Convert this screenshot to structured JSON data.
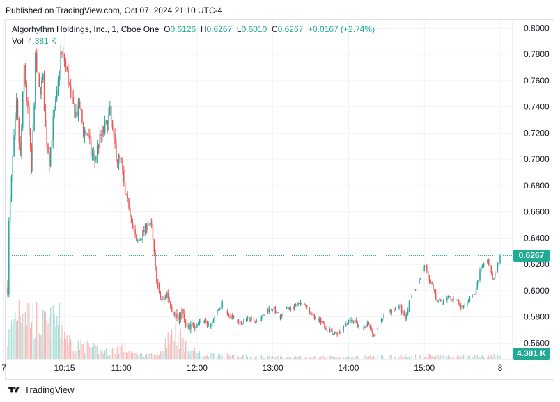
{
  "header": {
    "published": "Published on TradingView.com, Oct 07, 2024 21:10 UTC-4"
  },
  "legend": {
    "symbol": "Algorhythm Holdings, Inc., 1, Cboe One",
    "o_label": "O",
    "o_value": "0.6126",
    "h_label": "H",
    "h_value": "0.6267",
    "l_label": "L",
    "l_value": "0.6010",
    "c_label": "C",
    "c_value": "0.6267",
    "change": "+0.0167 (+2.74%)",
    "vol_label": "Vol",
    "vol_value": "4.381 K"
  },
  "badges": {
    "last_price": "0.6267",
    "last_volume": "4.381 K"
  },
  "footer": {
    "brand": "TradingView"
  },
  "colors": {
    "up": "#26a69a",
    "down": "#ef5350",
    "up_vol": "#a8dcd6",
    "down_vol": "#f7b8b6",
    "grid": "#f0f3fa",
    "last_line": "#22ab94"
  },
  "chart_data": {
    "type": "candlestick",
    "title": "Algorhythm Holdings, Inc., 1, Cboe One",
    "y_axis": {
      "ticks": [
        "0.8000",
        "0.7800",
        "0.7600",
        "0.7400",
        "0.7200",
        "0.7000",
        "0.6800",
        "0.6600",
        "0.6400",
        "0.6200",
        "0.6000",
        "0.5800",
        "0.5600"
      ],
      "range": [
        0.548,
        0.806
      ],
      "position": "right"
    },
    "x_axis": {
      "ticks": [
        "7",
        "10:15",
        "11:00",
        "12:00",
        "13:00",
        "14:00",
        "15:00",
        "8"
      ],
      "range": [
        "09:30",
        "16:00"
      ]
    },
    "last_price": 0.6267,
    "price_path": [
      [
        "09:30",
        0.603
      ],
      [
        "09:31",
        0.65
      ],
      [
        "09:34",
        0.7
      ],
      [
        "09:37",
        0.74
      ],
      [
        "09:40",
        0.7
      ],
      [
        "09:43",
        0.77
      ],
      [
        "09:46",
        0.735
      ],
      [
        "09:49",
        0.69
      ],
      [
        "09:52",
        0.775
      ],
      [
        "09:55",
        0.752
      ],
      [
        "09:58",
        0.76
      ],
      [
        "10:00",
        0.723
      ],
      [
        "10:03",
        0.7
      ],
      [
        "10:06",
        0.728
      ],
      [
        "10:09",
        0.748
      ],
      [
        "10:12",
        0.78
      ],
      [
        "10:15",
        0.775
      ],
      [
        "10:18",
        0.76
      ],
      [
        "10:21",
        0.742
      ],
      [
        "10:24",
        0.735
      ],
      [
        "10:27",
        0.74
      ],
      [
        "10:30",
        0.722
      ],
      [
        "10:33",
        0.72
      ],
      [
        "10:36",
        0.705
      ],
      [
        "10:39",
        0.7
      ],
      [
        "10:42",
        0.712
      ],
      [
        "10:45",
        0.72
      ],
      [
        "10:48",
        0.725
      ],
      [
        "10:51",
        0.735
      ],
      [
        "10:54",
        0.714
      ],
      [
        "10:57",
        0.7
      ],
      [
        "11:00",
        0.698
      ],
      [
        "11:03",
        0.672
      ],
      [
        "11:06",
        0.665
      ],
      [
        "11:09",
        0.65
      ],
      [
        "11:12",
        0.636
      ],
      [
        "11:15",
        0.64
      ],
      [
        "11:18",
        0.645
      ],
      [
        "11:21",
        0.652
      ],
      [
        "11:24",
        0.648
      ],
      [
        "11:27",
        0.616
      ],
      [
        "11:30",
        0.596
      ],
      [
        "11:33",
        0.592
      ],
      [
        "11:36",
        0.598
      ],
      [
        "11:39",
        0.59
      ],
      [
        "11:42",
        0.584
      ],
      [
        "11:45",
        0.577
      ],
      [
        "11:48",
        0.584
      ],
      [
        "11:51",
        0.572
      ],
      [
        "11:54",
        0.57
      ],
      [
        "11:57",
        0.575
      ],
      [
        "12:00",
        0.575
      ],
      [
        "12:05",
        0.577
      ],
      [
        "12:10",
        0.574
      ],
      [
        "12:15",
        0.582
      ],
      [
        "12:20",
        0.59
      ],
      [
        "12:25",
        0.582
      ],
      [
        "12:30",
        0.577
      ],
      [
        "12:35",
        0.575
      ],
      [
        "12:40",
        0.58
      ],
      [
        "12:45",
        0.578
      ],
      [
        "12:50",
        0.577
      ],
      [
        "12:55",
        0.585
      ],
      [
        "13:00",
        0.588
      ],
      [
        "13:05",
        0.58
      ],
      [
        "13:10",
        0.585
      ],
      [
        "13:15",
        0.586
      ],
      [
        "13:20",
        0.592
      ],
      [
        "13:25",
        0.588
      ],
      [
        "13:30",
        0.584
      ],
      [
        "13:35",
        0.578
      ],
      [
        "13:40",
        0.574
      ],
      [
        "13:45",
        0.569
      ],
      [
        "13:50",
        0.566
      ],
      [
        "13:55",
        0.57
      ],
      [
        "14:00",
        0.578
      ],
      [
        "14:05",
        0.576
      ],
      [
        "14:10",
        0.57
      ],
      [
        "14:15",
        0.575
      ],
      [
        "14:20",
        0.564
      ],
      [
        "14:25",
        0.578
      ],
      [
        "14:30",
        0.582
      ],
      [
        "14:35",
        0.585
      ],
      [
        "14:40",
        0.588
      ],
      [
        "14:45",
        0.58
      ],
      [
        "14:50",
        0.596
      ],
      [
        "14:55",
        0.605
      ],
      [
        "15:00",
        0.62
      ],
      [
        "15:05",
        0.606
      ],
      [
        "15:10",
        0.593
      ],
      [
        "15:15",
        0.59
      ],
      [
        "15:20",
        0.595
      ],
      [
        "15:25",
        0.594
      ],
      [
        "15:30",
        0.586
      ],
      [
        "15:35",
        0.592
      ],
      [
        "15:40",
        0.597
      ],
      [
        "15:45",
        0.618
      ],
      [
        "15:50",
        0.622
      ],
      [
        "15:55",
        0.608
      ],
      [
        "16:00",
        0.6267
      ]
    ],
    "volume_profile": [
      [
        "09:30",
        0.3
      ],
      [
        "09:40",
        0.95
      ],
      [
        "09:50",
        0.65
      ],
      [
        "10:00",
        0.5
      ],
      [
        "10:10",
        0.6
      ],
      [
        "10:20",
        0.25
      ],
      [
        "10:30",
        0.2
      ],
      [
        "10:40",
        0.15
      ],
      [
        "10:50",
        0.1
      ],
      [
        "11:00",
        0.2
      ],
      [
        "11:10",
        0.08
      ],
      [
        "11:20",
        0.06
      ],
      [
        "11:30",
        0.05
      ],
      [
        "11:40",
        0.5
      ],
      [
        "11:50",
        0.25
      ],
      [
        "12:00",
        0.1
      ],
      [
        "12:30",
        0.05
      ],
      [
        "13:00",
        0.03
      ],
      [
        "14:00",
        0.03
      ],
      [
        "15:00",
        0.06
      ],
      [
        "15:30",
        0.04
      ],
      [
        "16:00",
        0.05
      ]
    ]
  }
}
